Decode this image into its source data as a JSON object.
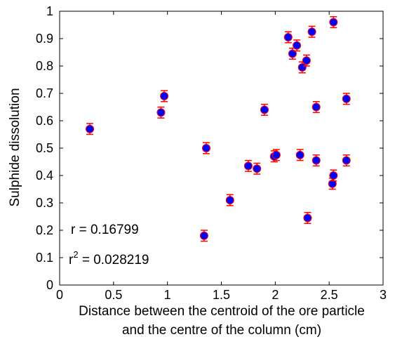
{
  "chart_data": {
    "type": "scatter",
    "title": "",
    "xlabel_line1": "Distance between the centroid of the ore particle",
    "xlabel_line2": "and the centre of the column (cm)",
    "ylabel": "Sulphide dissolution",
    "xlim": [
      0,
      3
    ],
    "ylim": [
      0,
      1
    ],
    "xticks": [
      "0",
      "0.5",
      "1",
      "1.5",
      "2",
      "2.5",
      "3"
    ],
    "yticks": [
      "0",
      "0.1",
      "0.2",
      "0.3",
      "0.4",
      "0.5",
      "0.6",
      "0.7",
      "0.8",
      "0.9",
      "1"
    ],
    "grid": false,
    "marker_color": "#0000ff",
    "errorbar_color": "#ff0000",
    "error": 0.02,
    "annotations": {
      "r_text": "r = 0.16799",
      "r2_prefix": "r",
      "r2_sup": "2",
      "r2_value": " = 0.028219"
    },
    "points": [
      {
        "x": 0.28,
        "y": 0.57
      },
      {
        "x": 0.94,
        "y": 0.63
      },
      {
        "x": 0.97,
        "y": 0.69
      },
      {
        "x": 1.34,
        "y": 0.18
      },
      {
        "x": 1.36,
        "y": 0.5
      },
      {
        "x": 1.58,
        "y": 0.31
      },
      {
        "x": 1.75,
        "y": 0.435
      },
      {
        "x": 1.83,
        "y": 0.425
      },
      {
        "x": 1.9,
        "y": 0.64
      },
      {
        "x": 1.99,
        "y": 0.47
      },
      {
        "x": 2.01,
        "y": 0.475
      },
      {
        "x": 2.12,
        "y": 0.905
      },
      {
        "x": 2.16,
        "y": 0.845
      },
      {
        "x": 2.2,
        "y": 0.875
      },
      {
        "x": 2.23,
        "y": 0.475
      },
      {
        "x": 2.25,
        "y": 0.795
      },
      {
        "x": 2.29,
        "y": 0.82
      },
      {
        "x": 2.3,
        "y": 0.245
      },
      {
        "x": 2.34,
        "y": 0.925
      },
      {
        "x": 2.38,
        "y": 0.65
      },
      {
        "x": 2.38,
        "y": 0.455
      },
      {
        "x": 2.53,
        "y": 0.37
      },
      {
        "x": 2.54,
        "y": 0.4
      },
      {
        "x": 2.54,
        "y": 0.96
      },
      {
        "x": 2.66,
        "y": 0.68
      },
      {
        "x": 2.66,
        "y": 0.455
      }
    ]
  }
}
